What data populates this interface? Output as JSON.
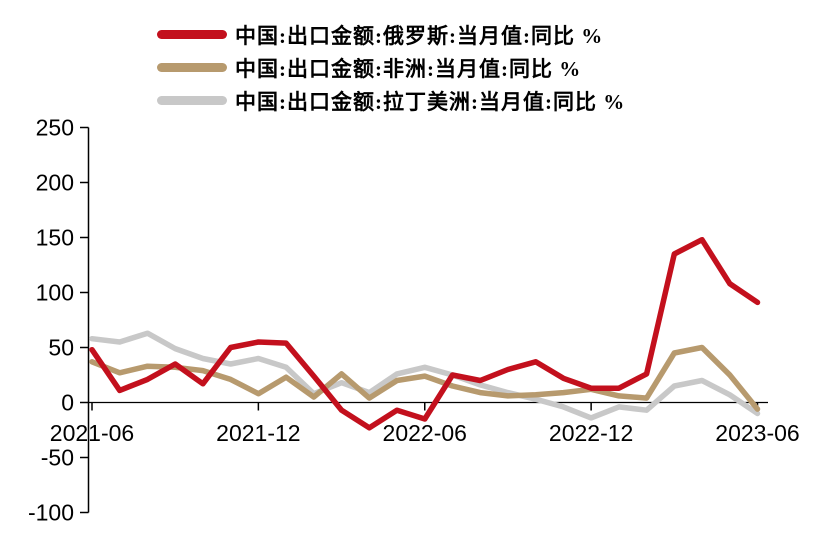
{
  "legend": {
    "items": [
      {
        "label": "中国:出口金额:俄罗斯:当月值:同比 %",
        "color": "#c3101d"
      },
      {
        "label": "中国:出口金额:非洲:当月值:同比 %",
        "color": "#b79a6e"
      },
      {
        "label": "中国:出口金额:拉丁美洲:当月值:同比 %",
        "color": "#c8c8c8"
      }
    ]
  },
  "chart_data": {
    "type": "line",
    "title": "",
    "xlabel": "",
    "ylabel": "",
    "x": [
      "2021-06",
      "2021-07",
      "2021-08",
      "2021-09",
      "2021-10",
      "2021-11",
      "2021-12",
      "2022-01",
      "2022-02",
      "2022-03",
      "2022-04",
      "2022-05",
      "2022-06",
      "2022-07",
      "2022-08",
      "2022-09",
      "2022-10",
      "2022-11",
      "2022-12",
      "2023-01",
      "2023-02",
      "2023-03",
      "2023-04",
      "2023-05",
      "2023-06"
    ],
    "x_tick_labels": [
      "2021-06",
      "2021-12",
      "2022-06",
      "2022-12",
      "2023-06"
    ],
    "y_ticks": [
      250,
      200,
      150,
      100,
      50,
      0,
      -50,
      -100
    ],
    "ylim": [
      -100,
      250
    ],
    "grid": false,
    "legend_position": "top",
    "series": [
      {
        "name": "中国:出口金额:俄罗斯:当月值:同比 %",
        "color": "#c3101d",
        "values": [
          48,
          11,
          21,
          35,
          17,
          50,
          55,
          54,
          24,
          -7,
          -23,
          -7,
          -15,
          25,
          20,
          30,
          37,
          22,
          13,
          13,
          26,
          135,
          148,
          108,
          91
        ]
      },
      {
        "name": "中国:出口金额:非洲:当月值:同比 %",
        "color": "#b79a6e",
        "values": [
          37,
          27,
          33,
          32,
          29,
          21,
          8,
          23,
          5,
          26,
          4,
          20,
          24,
          15,
          9,
          6,
          7,
          9,
          12,
          6,
          4,
          45,
          50,
          25,
          -6
        ]
      },
      {
        "name": "中国:出口金额:拉丁美洲:当月值:同比 %",
        "color": "#c8c8c8",
        "values": [
          58,
          55,
          63,
          49,
          40,
          35,
          40,
          32,
          8,
          18,
          9,
          26,
          32,
          25,
          16,
          9,
          3,
          -4,
          -14,
          -4,
          -7,
          15,
          20,
          7,
          -10
        ]
      }
    ]
  }
}
